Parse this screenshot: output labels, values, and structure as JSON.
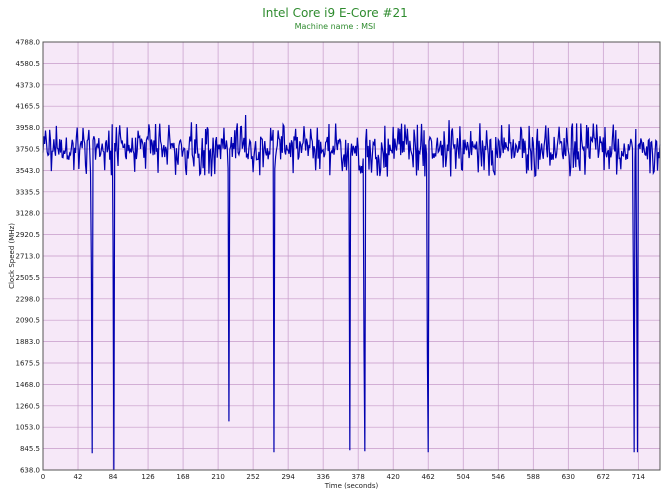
{
  "chart_data": {
    "type": "line",
    "title": "Intel Core i9 E-Core #21",
    "subtitle": "Machine name : MSI",
    "xlabel": "Time (seconds)",
    "ylabel": "Clock Speed (MHz)",
    "xlim": [
      0,
      740
    ],
    "ylim": [
      638.0,
      4788.0
    ],
    "x_ticks": [
      "0",
      "42",
      "84",
      "126",
      "168",
      "210",
      "252",
      "294",
      "336",
      "378",
      "420",
      "462",
      "504",
      "546",
      "588",
      "630",
      "672",
      "714"
    ],
    "y_ticks": [
      "638.0",
      "845.5",
      "1053.0",
      "1260.5",
      "1468.0",
      "1675.5",
      "1883.0",
      "2090.5",
      "2298.0",
      "2505.5",
      "2713.0",
      "2920.5",
      "3128.0",
      "3335.5",
      "3543.0",
      "3750.5",
      "3958.0",
      "4165.5",
      "4373.0",
      "4580.5",
      "4788.0"
    ],
    "grid": true,
    "colors": {
      "plot_bg": "#f6e8f8",
      "grid": "#c59ac9",
      "line": "#0000b0",
      "title": "#2e8b2e"
    },
    "series": [
      {
        "baseline": 3760,
        "noise_range": [
          3480,
          4000
        ],
        "dips": [
          {
            "x": 58,
            "y": 2600
          },
          {
            "x": 59,
            "y": 800
          },
          {
            "x": 84,
            "y": 2850
          },
          {
            "x": 85,
            "y": 640
          },
          {
            "x": 222,
            "y": 3560
          },
          {
            "x": 223,
            "y": 1110
          },
          {
            "x": 277,
            "y": 810
          },
          {
            "x": 368,
            "y": 830
          },
          {
            "x": 385,
            "y": 1820
          },
          {
            "x": 386,
            "y": 820
          },
          {
            "x": 461,
            "y": 1760
          },
          {
            "x": 462,
            "y": 810
          },
          {
            "x": 708,
            "y": 2600
          },
          {
            "x": 709,
            "y": 810
          },
          {
            "x": 712,
            "y": 2500
          },
          {
            "x": 713,
            "y": 810
          }
        ],
        "peaks": [
          {
            "x": 243,
            "y": 4080
          },
          {
            "x": 178,
            "y": 4010
          },
          {
            "x": 487,
            "y": 4030
          }
        ]
      }
    ]
  }
}
